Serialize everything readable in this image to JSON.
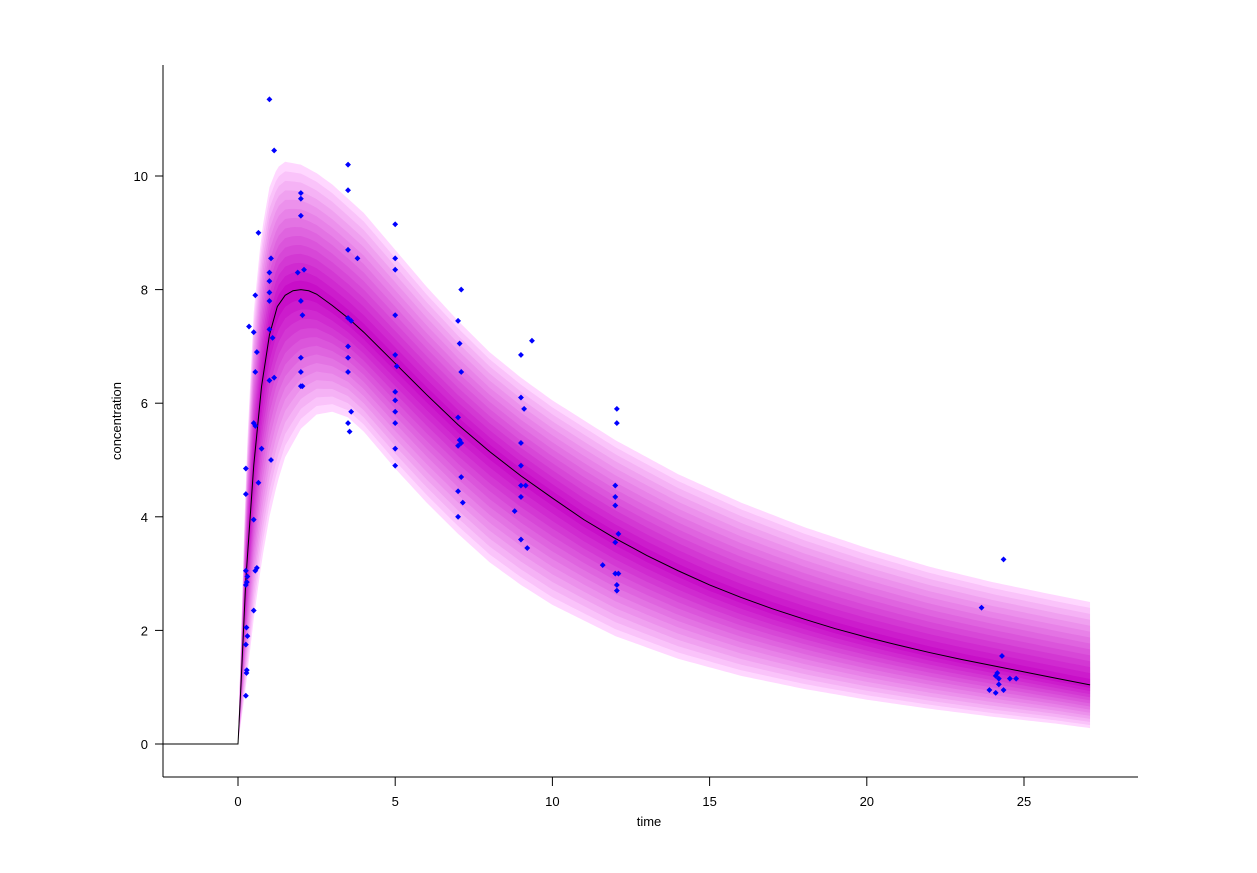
{
  "chart_data": {
    "type": "line",
    "title": "",
    "xlabel": "time",
    "ylabel": "concentration",
    "xlim": [
      -2.4,
      28.4
    ],
    "ylim": [
      -0.58,
      11.95
    ],
    "x_ticks": [
      0,
      5,
      10,
      15,
      20,
      25
    ],
    "x_tick_labels": [
      "0",
      "5",
      "10",
      "15",
      "20",
      "25"
    ],
    "y_ticks": [
      0,
      2,
      4,
      6,
      8,
      10
    ],
    "y_tick_labels": [
      "0",
      "2",
      "4",
      "6",
      "8",
      "10"
    ],
    "grid": false,
    "legend": null,
    "colors": {
      "band": "#cc00cc",
      "median_line": "#000000",
      "observations": "#0000ff"
    },
    "series": [
      {
        "name": "median prediction",
        "type": "line",
        "x": [
          -2.4,
          0,
          0.1,
          0.25,
          0.5,
          0.75,
          1.0,
          1.25,
          1.5,
          1.75,
          2.0,
          2.25,
          2.5,
          3.0,
          3.5,
          4.0,
          5.0,
          6.0,
          7.0,
          8.0,
          9.0,
          10.0,
          11.0,
          12.0,
          13.0,
          14.0,
          15.0,
          16.0,
          17.0,
          18.0,
          19.0,
          20.0,
          21.0,
          22.0,
          23.0,
          24.0,
          25.0,
          26.0,
          27.1
        ],
        "y": [
          0,
          0,
          1.1,
          2.9,
          4.9,
          6.3,
          7.2,
          7.7,
          7.9,
          7.98,
          8.0,
          7.98,
          7.92,
          7.72,
          7.5,
          7.25,
          6.7,
          6.15,
          5.62,
          5.15,
          4.72,
          4.33,
          3.95,
          3.62,
          3.32,
          3.05,
          2.8,
          2.58,
          2.38,
          2.2,
          2.03,
          1.88,
          1.74,
          1.61,
          1.49,
          1.38,
          1.27,
          1.16,
          1.04
        ]
      },
      {
        "name": "prediction interval upper",
        "type": "area-bound",
        "x": [
          0,
          0.25,
          0.5,
          0.75,
          1.0,
          1.25,
          1.5,
          2.0,
          2.5,
          3.0,
          3.5,
          4.0,
          5.0,
          6.0,
          7.0,
          8.0,
          9.0,
          10.0,
          12.0,
          14.0,
          16.0,
          18.0,
          20.0,
          22.0,
          24.0,
          26.0,
          27.1
        ],
        "y": [
          0,
          4.8,
          7.6,
          9.0,
          9.8,
          10.15,
          10.25,
          10.2,
          10.05,
          9.85,
          9.6,
          9.35,
          8.7,
          8.05,
          7.45,
          6.9,
          6.45,
          6.05,
          5.35,
          4.75,
          4.25,
          3.82,
          3.45,
          3.12,
          2.85,
          2.62,
          2.5
        ]
      },
      {
        "name": "prediction interval lower",
        "type": "area-bound",
        "x": [
          0,
          0.25,
          0.5,
          0.75,
          1.0,
          1.25,
          1.5,
          2.0,
          2.5,
          3.0,
          3.5,
          4.0,
          5.0,
          6.0,
          7.0,
          8.0,
          9.0,
          10.0,
          12.0,
          14.0,
          16.0,
          18.0,
          20.0,
          22.0,
          24.0,
          26.0,
          27.1
        ],
        "y": [
          0,
          1.0,
          2.2,
          3.2,
          4.0,
          4.6,
          5.05,
          5.55,
          5.8,
          5.85,
          5.75,
          5.5,
          4.85,
          4.25,
          3.7,
          3.2,
          2.8,
          2.45,
          1.9,
          1.5,
          1.2,
          0.97,
          0.78,
          0.62,
          0.48,
          0.36,
          0.28
        ]
      },
      {
        "name": "observations",
        "type": "scatter",
        "points": [
          [
            0.25,
            0.85
          ],
          [
            0.27,
            1.25
          ],
          [
            0.28,
            1.3
          ],
          [
            0.25,
            1.75
          ],
          [
            0.3,
            1.9
          ],
          [
            0.27,
            2.05
          ],
          [
            0.25,
            2.8
          ],
          [
            0.28,
            2.85
          ],
          [
            0.3,
            2.95
          ],
          [
            0.25,
            3.05
          ],
          [
            0.55,
            3.05
          ],
          [
            0.6,
            3.1
          ],
          [
            0.5,
            2.35
          ],
          [
            0.5,
            3.95
          ],
          [
            0.65,
            4.6
          ],
          [
            0.25,
            4.4
          ],
          [
            0.25,
            4.85
          ],
          [
            0.55,
            5.6
          ],
          [
            0.5,
            5.65
          ],
          [
            0.75,
            5.2
          ],
          [
            0.55,
            6.55
          ],
          [
            0.6,
            6.9
          ],
          [
            0.35,
            7.35
          ],
          [
            0.5,
            7.25
          ],
          [
            0.55,
            7.9
          ],
          [
            0.65,
            9.0
          ],
          [
            1.0,
            6.4
          ],
          [
            1.15,
            6.45
          ],
          [
            1.05,
            5.0
          ],
          [
            1.0,
            7.3
          ],
          [
            1.1,
            7.15
          ],
          [
            1.0,
            7.8
          ],
          [
            1.0,
            7.95
          ],
          [
            1.0,
            8.15
          ],
          [
            1.0,
            8.3
          ],
          [
            1.05,
            8.55
          ],
          [
            1.0,
            11.35
          ],
          [
            1.15,
            10.45
          ],
          [
            2.0,
            9.7
          ],
          [
            2.0,
            9.6
          ],
          [
            2.0,
            9.3
          ],
          [
            1.9,
            8.3
          ],
          [
            2.1,
            8.35
          ],
          [
            2.0,
            7.8
          ],
          [
            2.05,
            7.55
          ],
          [
            2.0,
            6.8
          ],
          [
            2.0,
            6.55
          ],
          [
            2.0,
            6.3
          ],
          [
            2.05,
            6.3
          ],
          [
            3.5,
            10.2
          ],
          [
            3.5,
            9.75
          ],
          [
            3.5,
            8.7
          ],
          [
            3.8,
            8.55
          ],
          [
            3.5,
            7.5
          ],
          [
            3.6,
            7.45
          ],
          [
            3.5,
            7.0
          ],
          [
            3.5,
            6.8
          ],
          [
            3.5,
            6.55
          ],
          [
            3.6,
            5.85
          ],
          [
            3.5,
            5.65
          ],
          [
            3.55,
            5.5
          ],
          [
            5.0,
            9.15
          ],
          [
            5.0,
            8.55
          ],
          [
            5.0,
            8.35
          ],
          [
            5.0,
            7.55
          ],
          [
            5.0,
            6.85
          ],
          [
            5.05,
            6.65
          ],
          [
            5.0,
            6.2
          ],
          [
            5.0,
            6.05
          ],
          [
            5.0,
            5.85
          ],
          [
            5.0,
            5.65
          ],
          [
            5.0,
            5.2
          ],
          [
            5.0,
            4.9
          ],
          [
            7.1,
            8.0
          ],
          [
            7.0,
            7.45
          ],
          [
            7.05,
            7.05
          ],
          [
            7.1,
            6.55
          ],
          [
            7.0,
            5.75
          ],
          [
            7.05,
            5.35
          ],
          [
            7.1,
            5.3
          ],
          [
            7.0,
            5.25
          ],
          [
            7.1,
            4.7
          ],
          [
            7.0,
            4.45
          ],
          [
            7.15,
            4.25
          ],
          [
            7.0,
            4.0
          ],
          [
            9.35,
            7.1
          ],
          [
            9.0,
            6.85
          ],
          [
            9.0,
            6.1
          ],
          [
            9.1,
            5.9
          ],
          [
            9.0,
            5.3
          ],
          [
            9.0,
            4.9
          ],
          [
            9.0,
            4.55
          ],
          [
            9.15,
            4.55
          ],
          [
            9.0,
            4.35
          ],
          [
            8.8,
            4.1
          ],
          [
            9.0,
            3.6
          ],
          [
            9.2,
            3.45
          ],
          [
            12.05,
            5.9
          ],
          [
            12.05,
            5.65
          ],
          [
            12.0,
            4.55
          ],
          [
            12.0,
            4.35
          ],
          [
            12.0,
            4.2
          ],
          [
            12.1,
            3.7
          ],
          [
            12.0,
            3.55
          ],
          [
            11.6,
            3.15
          ],
          [
            12.0,
            3.0
          ],
          [
            12.1,
            3.0
          ],
          [
            12.05,
            2.8
          ],
          [
            12.05,
            2.7
          ],
          [
            24.35,
            3.25
          ],
          [
            23.65,
            2.4
          ],
          [
            24.3,
            1.55
          ],
          [
            24.15,
            1.25
          ],
          [
            24.1,
            1.2
          ],
          [
            24.2,
            1.15
          ],
          [
            24.55,
            1.15
          ],
          [
            24.75,
            1.15
          ],
          [
            24.2,
            1.05
          ],
          [
            23.9,
            0.95
          ],
          [
            24.1,
            0.9
          ],
          [
            24.35,
            0.95
          ]
        ]
      }
    ]
  }
}
